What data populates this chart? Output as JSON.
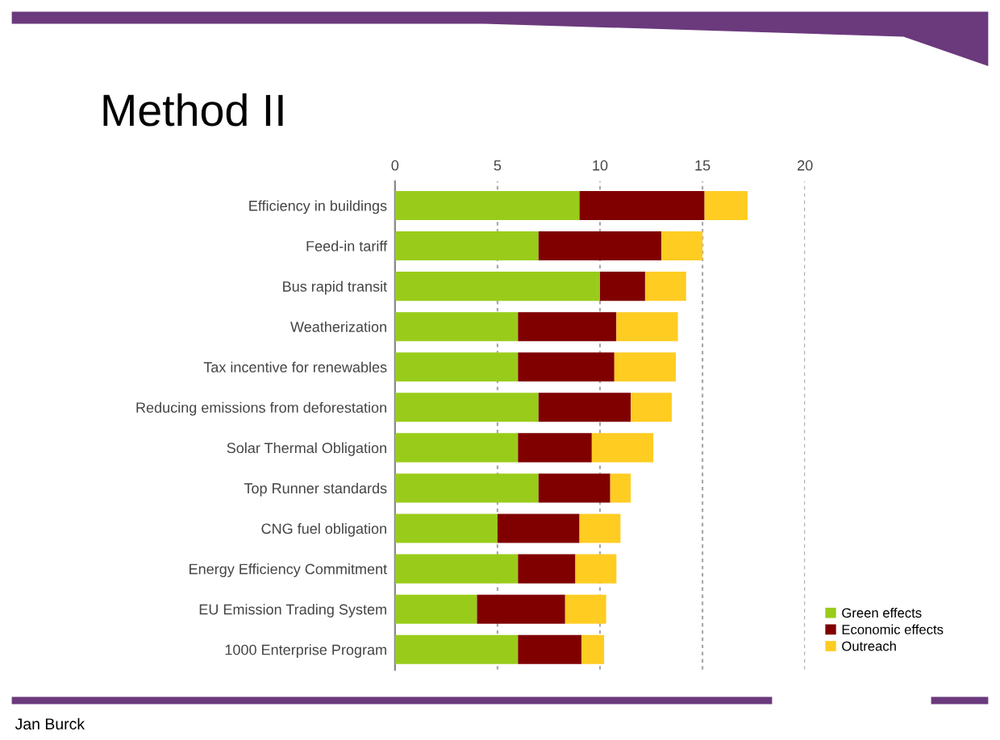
{
  "chart_data": {
    "type": "bar",
    "orientation": "horizontal",
    "stacked": true,
    "title": "Method II",
    "categories": [
      "Efficiency in buildings",
      "Feed-in tariff",
      "Bus rapid transit",
      "Weatherization",
      "Tax incentive for renewables",
      "Reducing emissions from deforestation",
      "Solar Thermal Obligation",
      "Top Runner standards",
      "CNG fuel obligation",
      "Energy Efficiency Commitment",
      "EU Emission Trading System",
      "1000 Enterprise Program"
    ],
    "series": [
      {
        "name": "Green effects",
        "color": "#99cc1a",
        "values": [
          9,
          7,
          10,
          6,
          6,
          7,
          6,
          7,
          5,
          6,
          4,
          6
        ]
      },
      {
        "name": "Economic effects",
        "color": "#800000",
        "values": [
          6.1,
          6,
          2.2,
          4.8,
          4.7,
          4.5,
          3.6,
          3.5,
          4,
          2.8,
          4.3,
          3.1
        ]
      },
      {
        "name": "Outreach",
        "color": "#ffcc22",
        "values": [
          2.1,
          2,
          2,
          3,
          3,
          2,
          3,
          1,
          2,
          2,
          2,
          1.1
        ]
      }
    ],
    "xlim": [
      0,
      20
    ],
    "xticks": [
      0,
      5,
      10,
      15,
      20
    ],
    "grid": "x",
    "legend": "bottom right",
    "annotations": [
      "Jan Burck"
    ]
  }
}
